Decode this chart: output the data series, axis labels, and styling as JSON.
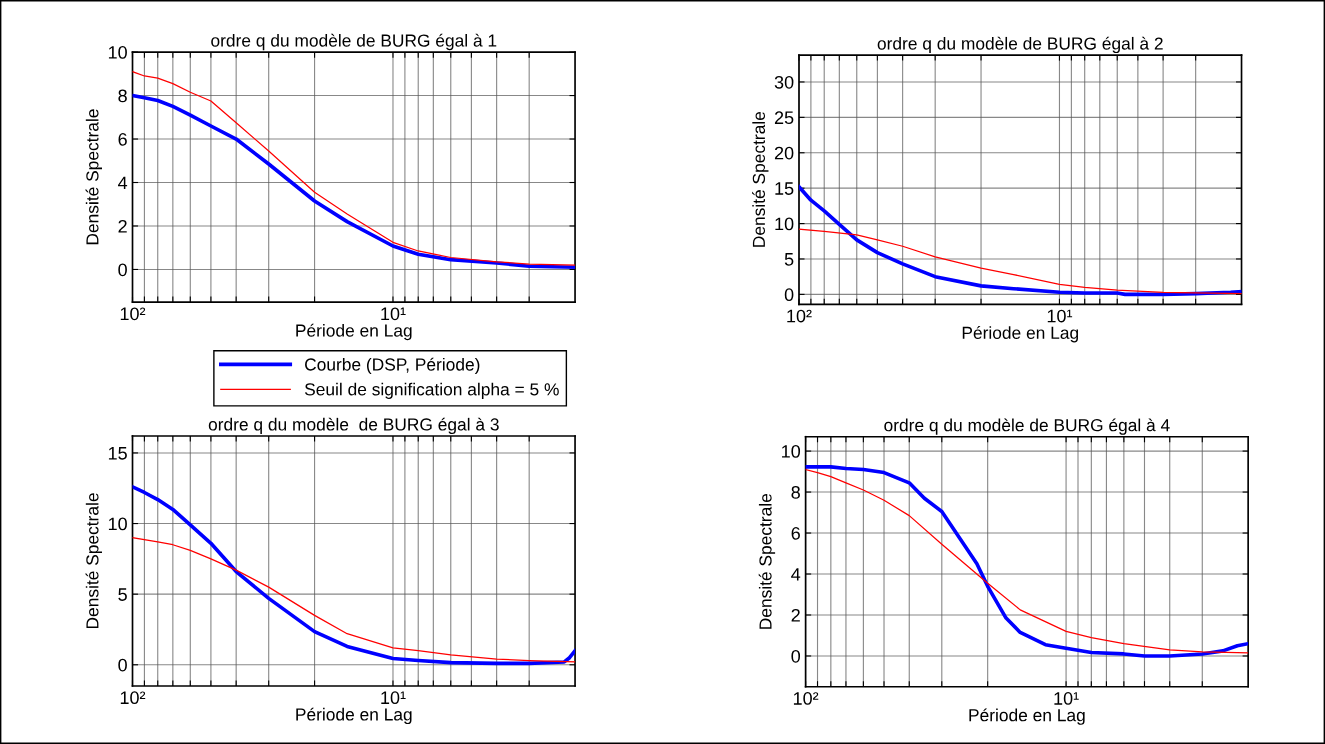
{
  "chart_data": [
    {
      "type": "line",
      "title": "ordre q du modèle de BURG égal à 1",
      "xlabel": "Période en Lag",
      "ylabel": "Densité Spectrale",
      "log": "x",
      "grid": true,
      "legend": "bottom right",
      "xlim": [
        100,
        2
      ],
      "ylim": [
        -1.5,
        10
      ],
      "yticks": [
        0,
        2,
        4,
        6,
        8,
        10
      ],
      "xticks": [
        {
          "value": 100,
          "label": "10²"
        },
        {
          "value": 90,
          "label": null
        },
        {
          "value": 80,
          "label": null
        },
        {
          "value": 70,
          "label": null
        },
        {
          "value": 60,
          "label": null
        },
        {
          "value": 50,
          "label": null
        },
        {
          "value": 40,
          "label": null
        },
        {
          "value": 30,
          "label": null
        },
        {
          "value": 20,
          "label": null
        },
        {
          "value": 10,
          "label": "10¹"
        },
        {
          "value": 9,
          "label": null
        },
        {
          "value": 8,
          "label": null
        },
        {
          "value": 7,
          "label": null
        },
        {
          "value": 6,
          "label": null
        },
        {
          "value": 5,
          "label": null
        },
        {
          "value": 4,
          "label": null
        },
        {
          "value": 3,
          "label": null
        }
      ],
      "series": [
        {
          "name": "Courbe (DSP, Période)",
          "color": "#0000ff",
          "x": [
            100,
            90,
            80,
            70,
            60,
            50,
            40,
            30,
            20,
            15,
            10,
            8,
            6,
            4,
            3,
            2
          ],
          "values": [
            8.0,
            7.9,
            7.77,
            7.5,
            7.1,
            6.6,
            6.0,
            4.85,
            3.15,
            2.2,
            1.08,
            0.7,
            0.45,
            0.3,
            0.15,
            0.1
          ]
        },
        {
          "name": "Seuil de signification alpha = 5 %",
          "color": "#ff0000",
          "x": [
            100,
            90,
            80,
            70,
            60,
            50,
            40,
            30,
            20,
            15,
            10,
            8,
            6,
            4,
            3,
            2
          ],
          "values": [
            9.1,
            8.9,
            8.8,
            8.55,
            8.15,
            7.75,
            6.75,
            5.45,
            3.55,
            2.55,
            1.25,
            0.85,
            0.55,
            0.35,
            0.25,
            0.2
          ]
        }
      ]
    },
    {
      "type": "line",
      "title": "ordre q du modèle de BURG égal à 2",
      "xlabel": "Période en Lag",
      "ylabel": "Densité Spectrale",
      "log": "x",
      "grid": true,
      "xlim": [
        100,
        2
      ],
      "ylim": [
        -1.4,
        33.8
      ],
      "yticks": [
        0,
        5,
        10,
        15,
        20,
        25,
        30
      ],
      "xticks": [
        {
          "value": 100,
          "label": "10²"
        },
        {
          "value": 90,
          "label": null
        },
        {
          "value": 80,
          "label": null
        },
        {
          "value": 70,
          "label": null
        },
        {
          "value": 60,
          "label": null
        },
        {
          "value": 50,
          "label": null
        },
        {
          "value": 40,
          "label": null
        },
        {
          "value": 30,
          "label": null
        },
        {
          "value": 20,
          "label": null
        },
        {
          "value": 10,
          "label": "10¹"
        },
        {
          "value": 9,
          "label": null
        },
        {
          "value": 8,
          "label": null
        },
        {
          "value": 7,
          "label": null
        },
        {
          "value": 6,
          "label": null
        },
        {
          "value": 5,
          "label": null
        },
        {
          "value": 4,
          "label": null
        },
        {
          "value": 3,
          "label": null
        }
      ],
      "series": [
        {
          "color": "#0000ff",
          "x": [
            100,
            90,
            80,
            70,
            60,
            50,
            40,
            30,
            20,
            15,
            10,
            8,
            6,
            5.6,
            4,
            3,
            2.2,
            2
          ],
          "values": [
            15.2,
            13.3,
            11.8,
            9.9,
            7.7,
            5.9,
            4.3,
            2.5,
            1.2,
            0.8,
            0.3,
            0.2,
            0.2,
            0.0,
            0.0,
            0.1,
            0.3,
            0.4
          ]
        },
        {
          "color": "#ff0000",
          "x": [
            100,
            80,
            60,
            50,
            40,
            30,
            20,
            15,
            10,
            8,
            6,
            4,
            3,
            2
          ],
          "values": [
            9.2,
            8.9,
            8.4,
            7.7,
            6.8,
            5.3,
            3.7,
            2.8,
            1.4,
            1.0,
            0.6,
            0.3,
            0.2,
            0.1
          ]
        }
      ]
    },
    {
      "type": "line",
      "title": "ordre q du modèle  de BURG égal à 3",
      "xlabel": "Période en Lag",
      "ylabel": "Densité Spectrale",
      "log": "x",
      "grid": true,
      "xlim": [
        100,
        2
      ],
      "ylim": [
        -1.5,
        16.2
      ],
      "yticks": [
        0,
        5,
        10,
        15
      ],
      "xticks": [
        {
          "value": 100,
          "label": "10²"
        },
        {
          "value": 90,
          "label": null
        },
        {
          "value": 80,
          "label": null
        },
        {
          "value": 70,
          "label": null
        },
        {
          "value": 60,
          "label": null
        },
        {
          "value": 50,
          "label": null
        },
        {
          "value": 40,
          "label": null
        },
        {
          "value": 30,
          "label": null
        },
        {
          "value": 20,
          "label": null
        },
        {
          "value": 10,
          "label": "10¹"
        },
        {
          "value": 9,
          "label": null
        },
        {
          "value": 8,
          "label": null
        },
        {
          "value": 7,
          "label": null
        },
        {
          "value": 6,
          "label": null
        },
        {
          "value": 5,
          "label": null
        },
        {
          "value": 4,
          "label": null
        },
        {
          "value": 3,
          "label": null
        }
      ],
      "series": [
        {
          "color": "#0000ff",
          "x": [
            100,
            90,
            80,
            70,
            60,
            50,
            40,
            30,
            20,
            15,
            10,
            8,
            6,
            4,
            3,
            2.2,
            2.1,
            2
          ],
          "values": [
            12.6,
            12.2,
            11.7,
            11.0,
            9.9,
            8.6,
            6.6,
            4.7,
            2.35,
            1.3,
            0.45,
            0.3,
            0.15,
            0.1,
            0.1,
            0.2,
            0.5,
            1.0
          ]
        },
        {
          "color": "#ff0000",
          "x": [
            100,
            80,
            70,
            60,
            50,
            40,
            30,
            20,
            15,
            10,
            8,
            6,
            4,
            3,
            2
          ],
          "values": [
            9.0,
            8.7,
            8.5,
            8.1,
            7.5,
            6.7,
            5.5,
            3.5,
            2.2,
            1.2,
            1.0,
            0.7,
            0.4,
            0.3,
            0.2
          ]
        }
      ]
    },
    {
      "type": "line",
      "title": "ordre q du modèle de BURG égal à 4",
      "xlabel": "Période en Lag",
      "ylabel": "Densité Spectrale",
      "log": "x",
      "grid": true,
      "xlim": [
        100,
        2
      ],
      "ylim": [
        -1.5,
        10.7
      ],
      "yticks": [
        0,
        2,
        4,
        6,
        8,
        10
      ],
      "xticks": [
        {
          "value": 100,
          "label": "10²"
        },
        {
          "value": 90,
          "label": null
        },
        {
          "value": 80,
          "label": null
        },
        {
          "value": 70,
          "label": null
        },
        {
          "value": 60,
          "label": null
        },
        {
          "value": 50,
          "label": null
        },
        {
          "value": 40,
          "label": null
        },
        {
          "value": 30,
          "label": null
        },
        {
          "value": 20,
          "label": null
        },
        {
          "value": 10,
          "label": "10¹"
        },
        {
          "value": 9,
          "label": null
        },
        {
          "value": 8,
          "label": null
        },
        {
          "value": 7,
          "label": null
        },
        {
          "value": 6,
          "label": null
        },
        {
          "value": 5,
          "label": null
        },
        {
          "value": 4,
          "label": null
        },
        {
          "value": 3,
          "label": null
        }
      ],
      "series": [
        {
          "color": "#0000ff",
          "x": [
            100,
            80,
            70,
            60,
            50,
            40,
            35,
            30,
            25,
            22,
            20,
            17,
            15,
            12,
            10,
            8,
            6,
            5,
            4,
            3,
            2.5,
            2.2,
            2
          ],
          "values": [
            9.23,
            9.23,
            9.15,
            9.1,
            8.95,
            8.45,
            7.7,
            7.05,
            5.55,
            4.5,
            3.4,
            1.85,
            1.15,
            0.55,
            0.38,
            0.17,
            0.1,
            0.0,
            0.0,
            0.1,
            0.25,
            0.5,
            0.6
          ]
        },
        {
          "color": "#ff0000",
          "x": [
            100,
            90,
            80,
            70,
            60,
            50,
            40,
            30,
            20,
            15,
            10,
            8,
            6,
            4,
            3,
            2
          ],
          "values": [
            9.1,
            8.95,
            8.75,
            8.45,
            8.1,
            7.6,
            6.85,
            5.45,
            3.55,
            2.25,
            1.2,
            0.9,
            0.6,
            0.3,
            0.2,
            0.15
          ]
        }
      ]
    }
  ]
}
